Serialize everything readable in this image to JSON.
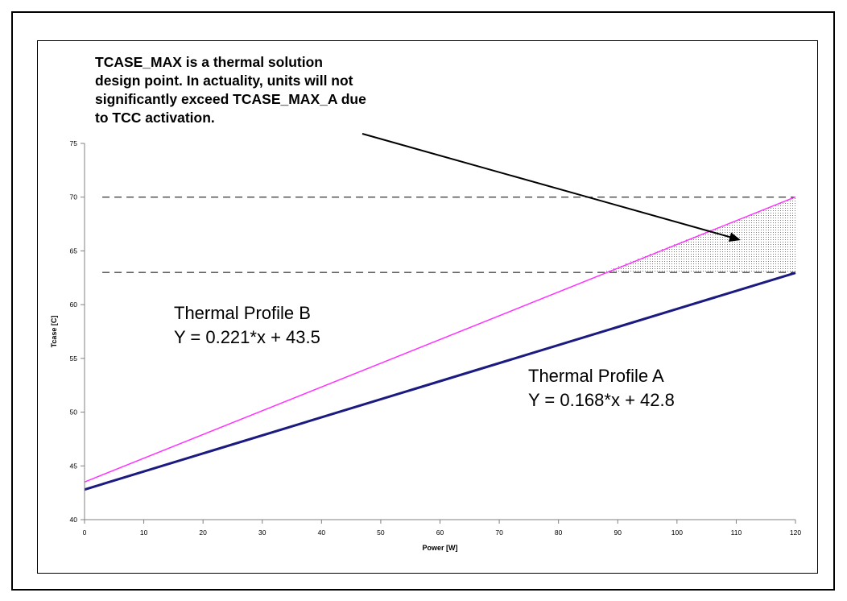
{
  "chart_data": {
    "type": "line",
    "xlabel": "Power [W]",
    "ylabel": "Tcase [C]",
    "xlim": [
      0,
      120
    ],
    "ylim": [
      40,
      75
    ],
    "x_ticks": [
      "0",
      "10",
      "20",
      "30",
      "40",
      "50",
      "60",
      "70",
      "80",
      "90",
      "100",
      "110",
      "120"
    ],
    "y_ticks": [
      "40",
      "45",
      "50",
      "55",
      "60",
      "65",
      "70",
      "75"
    ],
    "grid": false,
    "series": [
      {
        "name": "Thermal Profile A",
        "x": [
          0,
          120
        ],
        "y": [
          42.8,
          62.96
        ],
        "color": "#1a1a80"
      },
      {
        "name": "Thermal Profile B",
        "x": [
          0,
          120
        ],
        "y": [
          43.5,
          70.02
        ],
        "color": "#ff33ff"
      }
    ],
    "reference_lines": [
      {
        "y": 70,
        "x_start": 3,
        "x_end": 120,
        "style": "dashed"
      },
      {
        "y": 63,
        "x_start": 3,
        "x_end": 120,
        "style": "dashed"
      }
    ],
    "shaded_region": {
      "x_start": 87.4,
      "x_end": 120,
      "y_bottom": 63,
      "between": "Thermal Profile B and y=63"
    },
    "annotation_lines": [
      "TCASE_MAX is a thermal solution",
      "design point. In actuality, units will not",
      "significantly exceed TCASE_MAX_A due",
      "to TCC activation."
    ],
    "profile_b_label": {
      "name": "Thermal Profile B",
      "equation": "Y = 0.221*x + 43.5"
    },
    "profile_a_label": {
      "name": "Thermal Profile A",
      "equation": "Y = 0.168*x + 42.8"
    }
  }
}
